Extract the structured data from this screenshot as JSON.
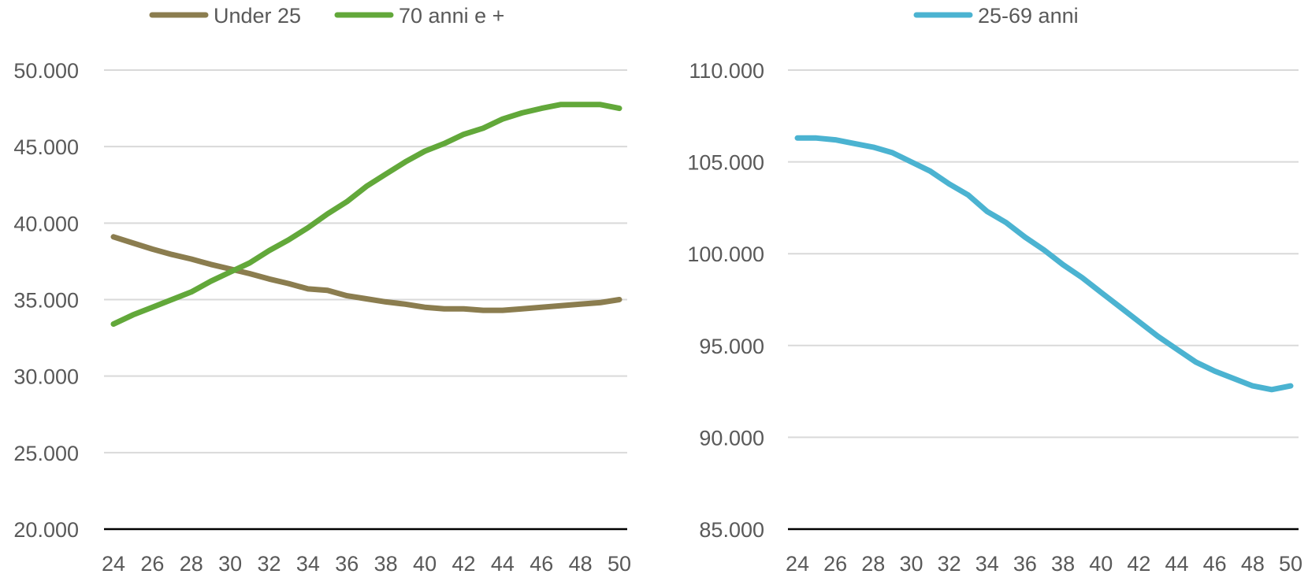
{
  "chart_data": [
    {
      "type": "line",
      "title": "",
      "xlabel": "",
      "ylabel": "",
      "ylim": [
        20000,
        50000
      ],
      "y_ticks": [
        20000,
        25000,
        30000,
        35000,
        40000,
        45000,
        50000
      ],
      "y_tick_labels": [
        "20.000",
        "25.000",
        "30.000",
        "35.000",
        "40.000",
        "45.000",
        "50.000"
      ],
      "x_ticks": [
        24,
        26,
        28,
        30,
        32,
        34,
        36,
        38,
        40,
        42,
        44,
        46,
        48,
        50
      ],
      "x_tick_labels": [
        "24",
        "26",
        "28",
        "30",
        "32",
        "34",
        "36",
        "38",
        "40",
        "42",
        "44",
        "46",
        "48",
        "50"
      ],
      "grid": true,
      "legend_position": "top",
      "x": [
        24,
        25,
        26,
        27,
        28,
        29,
        30,
        31,
        32,
        33,
        34,
        35,
        36,
        37,
        38,
        39,
        40,
        41,
        42,
        43,
        44,
        45,
        46,
        47,
        48,
        49,
        50
      ],
      "series": [
        {
          "name": "Under 25",
          "color": "#8B7D4F",
          "values": [
            39100,
            38700,
            38300,
            37950,
            37650,
            37300,
            37000,
            36700,
            36350,
            36050,
            35700,
            35600,
            35250,
            35050,
            34850,
            34700,
            34500,
            34400,
            34400,
            34300,
            34300,
            34400,
            34500,
            34600,
            34700,
            34800,
            35000
          ]
        },
        {
          "name": "70 anni e +",
          "color": "#62A83A",
          "values": [
            33400,
            34000,
            34500,
            35000,
            35500,
            36200,
            36800,
            37400,
            38200,
            38900,
            39700,
            40600,
            41400,
            42400,
            43200,
            44000,
            44700,
            45200,
            45800,
            46200,
            46800,
            47200,
            47500,
            47750,
            47750,
            47750,
            47500
          ]
        }
      ]
    },
    {
      "type": "line",
      "title": "",
      "xlabel": "",
      "ylabel": "",
      "ylim": [
        85000,
        110000
      ],
      "y_ticks": [
        85000,
        90000,
        95000,
        100000,
        105000,
        110000
      ],
      "y_tick_labels": [
        "85.000",
        "90.000",
        "95.000",
        "100.000",
        "105.000",
        "110.000"
      ],
      "x_ticks": [
        24,
        26,
        28,
        30,
        32,
        34,
        36,
        38,
        40,
        42,
        44,
        46,
        48,
        50
      ],
      "x_tick_labels": [
        "24",
        "26",
        "28",
        "30",
        "32",
        "34",
        "36",
        "38",
        "40",
        "42",
        "44",
        "46",
        "48",
        "50"
      ],
      "grid": true,
      "legend_position": "top",
      "x": [
        24,
        25,
        26,
        27,
        28,
        29,
        30,
        31,
        32,
        33,
        34,
        35,
        36,
        37,
        38,
        39,
        40,
        41,
        42,
        43,
        44,
        45,
        46,
        47,
        48,
        49,
        50
      ],
      "series": [
        {
          "name": "25-69 anni",
          "color": "#4BB3D1",
          "values": [
            106300,
            106300,
            106200,
            106000,
            105800,
            105500,
            105000,
            104500,
            103800,
            103200,
            102300,
            101700,
            100900,
            100200,
            99400,
            98700,
            97900,
            97100,
            96300,
            95500,
            94800,
            94100,
            93600,
            93200,
            92800,
            92600,
            92800
          ]
        }
      ]
    }
  ]
}
